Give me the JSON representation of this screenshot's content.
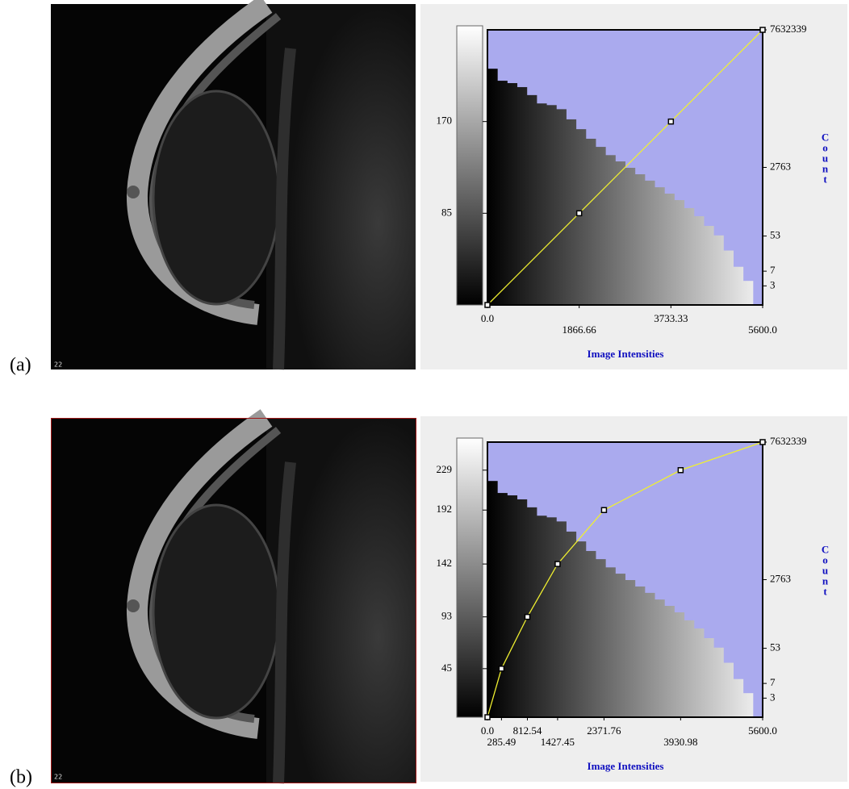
{
  "chart_data": [
    {
      "type": "line",
      "panel_label": "(a)",
      "image_label": "22",
      "x_label": "Image Intensities",
      "y2_label": "Count",
      "xlim": [
        0,
        5600
      ],
      "xticks": [
        {
          "value": 0,
          "label": "0.0"
        },
        1866.66,
        3733.33,
        {
          "value": 5600,
          "label": "5600.0"
        }
      ],
      "ylim": [
        0,
        255
      ],
      "yticks": [
        85,
        170
      ],
      "y2lim": [
        1,
        7632339
      ],
      "y2_scale": "log",
      "y2ticks": [
        3,
        7,
        53,
        2763,
        7632339
      ],
      "histogram": {
        "axis": "y2",
        "color": "#aaaaee",
        "bins": [
          0,
          200,
          400,
          600,
          800,
          1000,
          1200,
          1400,
          1600,
          1800,
          2000,
          2200,
          2400,
          2600,
          2800,
          3000,
          3200,
          3400,
          3600,
          3800,
          4000,
          4200,
          4400,
          4600,
          4800,
          5000,
          5200,
          5400,
          5600
        ],
        "counts": [
          813000,
          407000,
          355000,
          282000,
          178000,
          110000,
          100000,
          79000,
          44000,
          25000,
          14400,
          9000,
          5600,
          3900,
          2700,
          1860,
          1290,
          880,
          610,
          420,
          265,
          166,
          95,
          55,
          23,
          9,
          4,
          1
        ]
      },
      "transfer": {
        "color": "#f0f030",
        "x": [
          0,
          1866.66,
          3733.33,
          5600
        ],
        "values": [
          0,
          85,
          170,
          255
        ]
      }
    },
    {
      "type": "line",
      "panel_label": "(b)",
      "image_label": "22",
      "x_label": "Image Intensities",
      "y2_label": "Count",
      "xlim": [
        0,
        5600
      ],
      "xticks": [
        {
          "value": 0,
          "label": "0.0"
        },
        285.49,
        812.54,
        1427.45,
        2371.76,
        3930.98,
        {
          "value": 5600,
          "label": "5600.0"
        }
      ],
      "ylim": [
        0,
        255
      ],
      "yticks": [
        45,
        93,
        142,
        192,
        229
      ],
      "y2lim": [
        1,
        7632339
      ],
      "y2_scale": "log",
      "y2ticks": [
        3,
        7,
        53,
        2763,
        7632339
      ],
      "histogram": {
        "axis": "y2",
        "color": "#aaaaee",
        "bins": [
          0,
          200,
          400,
          600,
          800,
          1000,
          1200,
          1400,
          1600,
          1800,
          2000,
          2200,
          2400,
          2600,
          2800,
          3000,
          3200,
          3400,
          3600,
          3800,
          4000,
          4200,
          4400,
          4600,
          4800,
          5000,
          5200,
          5400,
          5600
        ],
        "counts": [
          813000,
          407000,
          355000,
          282000,
          178000,
          110000,
          100000,
          79000,
          44000,
          25000,
          14400,
          9000,
          5600,
          3900,
          2700,
          1860,
          1290,
          880,
          610,
          420,
          265,
          166,
          95,
          55,
          23,
          9,
          4,
          1
        ]
      },
      "transfer": {
        "color": "#f0f030",
        "x": [
          0,
          285.49,
          812.54,
          1427.45,
          2371.76,
          3930.98,
          5600
        ],
        "values": [
          0,
          45,
          93,
          142,
          192,
          229,
          255
        ]
      }
    }
  ]
}
